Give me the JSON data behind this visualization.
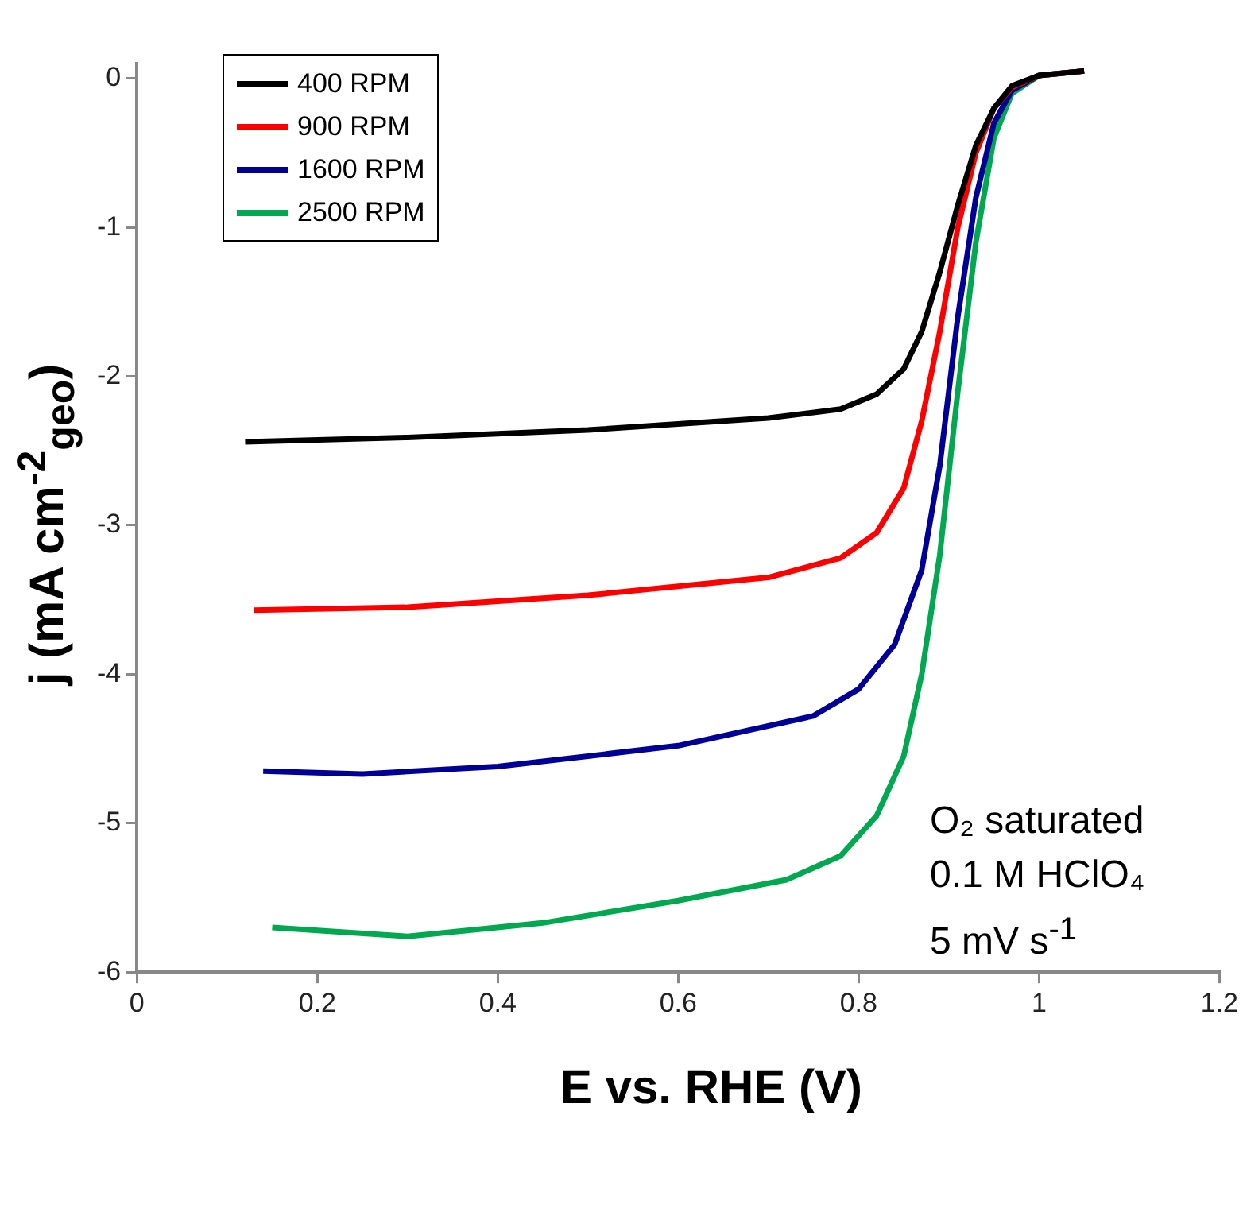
{
  "chart_data": {
    "type": "line",
    "xlabel": "E vs. RHE (V)",
    "ylabel": "j (mA cm$^{-2}$$_{geo}$)",
    "xlim": [
      0,
      1.2
    ],
    "xticks": [
      0,
      0.2,
      0.4,
      0.6,
      0.8,
      1,
      1.2
    ],
    "ylim": [
      -6,
      0.1
    ],
    "yticks": [
      -6,
      -5,
      -4,
      -3,
      -2,
      -1,
      0
    ],
    "grid": false,
    "legend": "top left",
    "marker": "none",
    "line_style": "solid",
    "annotations": [
      "O₂ saturated",
      "0.1 M HClO₄",
      "5 mV s$^{-1}$"
    ],
    "series": [
      {
        "name": "400 RPM",
        "color": "#000000",
        "x": [
          0.12,
          0.3,
          0.5,
          0.7,
          0.78,
          0.82,
          0.85,
          0.87,
          0.89,
          0.91,
          0.93,
          0.95,
          0.97,
          1.0,
          1.05
        ],
        "values": [
          -2.44,
          -2.41,
          -2.36,
          -2.28,
          -2.22,
          -2.12,
          -1.95,
          -1.7,
          -1.3,
          -0.85,
          -0.45,
          -0.2,
          -0.05,
          0.02,
          0.05
        ]
      },
      {
        "name": "900 RPM",
        "color": "#ff0000",
        "x": [
          0.13,
          0.3,
          0.5,
          0.7,
          0.78,
          0.82,
          0.85,
          0.87,
          0.89,
          0.91,
          0.93,
          0.95,
          0.97,
          1.0,
          1.05
        ],
        "values": [
          -3.57,
          -3.55,
          -3.47,
          -3.35,
          -3.22,
          -3.05,
          -2.75,
          -2.3,
          -1.7,
          -1.0,
          -0.5,
          -0.2,
          -0.06,
          0.02,
          0.05
        ]
      },
      {
        "name": "1600 RPM",
        "color": "#000099",
        "x": [
          0.14,
          0.25,
          0.4,
          0.6,
          0.75,
          0.8,
          0.84,
          0.87,
          0.89,
          0.91,
          0.93,
          0.95,
          0.97,
          1.0,
          1.05
        ],
        "values": [
          -4.65,
          -4.67,
          -4.62,
          -4.48,
          -4.28,
          -4.1,
          -3.8,
          -3.3,
          -2.6,
          -1.6,
          -0.8,
          -0.3,
          -0.08,
          0.02,
          0.05
        ]
      },
      {
        "name": "2500 RPM",
        "color": "#00a850",
        "x": [
          0.15,
          0.3,
          0.45,
          0.6,
          0.72,
          0.78,
          0.82,
          0.85,
          0.87,
          0.89,
          0.91,
          0.93,
          0.95,
          0.97,
          1.0,
          1.05
        ],
        "values": [
          -5.7,
          -5.76,
          -5.67,
          -5.52,
          -5.38,
          -5.22,
          -4.95,
          -4.55,
          -4.0,
          -3.2,
          -2.1,
          -1.1,
          -0.4,
          -0.1,
          0.02,
          0.05
        ]
      }
    ]
  }
}
